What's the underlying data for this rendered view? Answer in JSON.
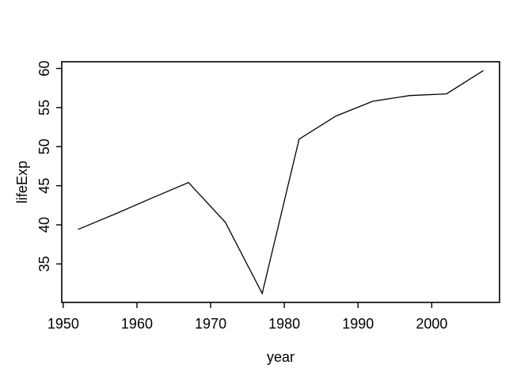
{
  "chart_data": {
    "type": "line",
    "title": "",
    "xlabel": "year",
    "ylabel": "lifeExp",
    "x": [
      1952,
      1957,
      1962,
      1967,
      1972,
      1977,
      1982,
      1987,
      1992,
      1997,
      2002,
      2007
    ],
    "y": [
      39.417,
      41.366,
      43.415,
      45.415,
      40.317,
      31.22,
      50.957,
      53.914,
      55.803,
      56.534,
      56.752,
      59.723
    ],
    "xlim": [
      1949.8,
      2009.2
    ],
    "ylim": [
      30.08,
      60.86
    ],
    "x_ticks": [
      1950,
      1960,
      1970,
      1980,
      1990,
      2000
    ],
    "y_ticks": [
      35,
      40,
      45,
      50,
      55,
      60
    ],
    "grid": false,
    "legend": "none",
    "markers": false,
    "line_color": "#000000",
    "axis_color": "#000000",
    "background_color": "#ffffff"
  }
}
